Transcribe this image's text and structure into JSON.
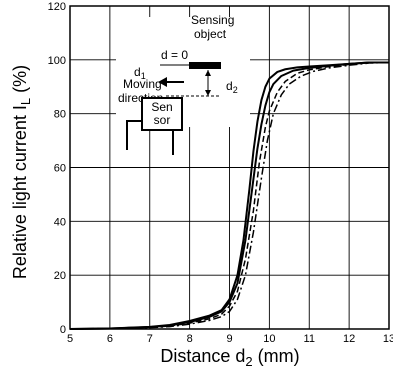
{
  "chart_data": {
    "type": "line",
    "xlabel": "Distance d",
    "xlabel_sub": "2",
    "xlabel_unit": " (mm)",
    "ylabel": "Relative light current  I",
    "ylabel_sub": "L",
    "ylabel_unit": "  (%)",
    "xlim": [
      5,
      13
    ],
    "ylim": [
      0,
      120
    ],
    "x_ticks": [
      "5",
      "6",
      "7",
      "8",
      "9",
      "10",
      "11",
      "12",
      "13"
    ],
    "y_ticks": [
      "0",
      "20",
      "40",
      "60",
      "80",
      "100",
      "120"
    ],
    "grid": true,
    "series": [
      {
        "style": "solid",
        "x": [
          5,
          6,
          7,
          7.5,
          8,
          8.5,
          8.8,
          9.0,
          9.2,
          9.35,
          9.5,
          9.6,
          9.7,
          9.8,
          9.9,
          10.0,
          10.2,
          10.4,
          10.7,
          11,
          11.5,
          12,
          12.5,
          13
        ],
        "y": [
          0,
          0.2,
          0.8,
          1.5,
          3,
          5,
          7,
          11,
          20,
          33,
          52,
          66,
          77,
          85,
          90,
          93,
          95.5,
          96.5,
          97.2,
          97.5,
          98,
          98.5,
          99,
          99
        ]
      },
      {
        "style": "solid",
        "x": [
          5,
          6,
          7,
          7.5,
          8,
          8.5,
          8.8,
          9.0,
          9.2,
          9.4,
          9.55,
          9.7,
          9.8,
          9.9,
          10.0,
          10.1,
          10.3,
          10.6,
          11,
          11.5,
          12,
          12.5,
          13
        ],
        "y": [
          0,
          0.2,
          0.7,
          1.3,
          2.6,
          4.5,
          6.5,
          10,
          17,
          33,
          50,
          67,
          76,
          83,
          88,
          91,
          94,
          96,
          97,
          97.8,
          98.5,
          99,
          99
        ]
      },
      {
        "style": "dashed",
        "x": [
          5,
          6,
          7,
          7.5,
          8,
          8.5,
          8.8,
          9.0,
          9.2,
          9.4,
          9.6,
          9.75,
          9.9,
          10.0,
          10.2,
          10.4,
          10.7,
          11,
          11.5,
          12,
          12.5,
          13
        ],
        "y": [
          0,
          0.2,
          0.6,
          1.1,
          2.2,
          3.8,
          5.5,
          8.5,
          14,
          26,
          44,
          62,
          75,
          81,
          88,
          92,
          95,
          96.3,
          97.5,
          98.3,
          99,
          99
        ]
      },
      {
        "style": "dashdot",
        "x": [
          5,
          6,
          7,
          7.5,
          8,
          8.5,
          8.8,
          9.0,
          9.2,
          9.4,
          9.6,
          9.8,
          9.95,
          10.1,
          10.3,
          10.5,
          10.8,
          11.1,
          11.5,
          12,
          12.5,
          13
        ],
        "y": [
          0,
          0.2,
          0.5,
          0.9,
          1.8,
          3.2,
          4.6,
          6.5,
          11,
          20,
          36,
          56,
          70,
          80,
          87,
          91,
          94,
          95.7,
          97,
          98,
          98.8,
          99
        ]
      }
    ],
    "inset": {
      "title_line1": "Sensing",
      "title_line2": "object",
      "d_equals": "d = 0",
      "d1": "d",
      "d1_sub": "1",
      "d2": "d",
      "d2_sub": "2",
      "moving_line1": "Moving",
      "moving_line2": "direction",
      "sensor_line1": "Sen",
      "sensor_line2": "sor"
    }
  }
}
